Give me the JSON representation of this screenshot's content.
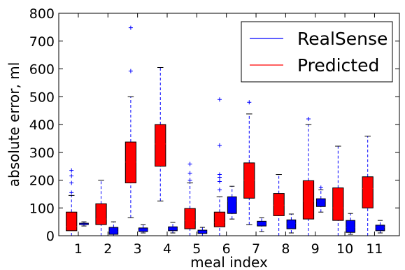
{
  "chart_data": {
    "type": "box",
    "xlabel": "meal index",
    "ylabel": "absolute error, ml",
    "ylim": [
      0,
      800
    ],
    "yticks": [
      0,
      100,
      200,
      300,
      400,
      500,
      600,
      700,
      800
    ],
    "categories": [
      "1",
      "2",
      "3",
      "4",
      "5",
      "6",
      "7",
      "8",
      "9",
      "10",
      "11"
    ],
    "grid": false,
    "legend_position": "top-right",
    "series": [
      {
        "name": "Predicted",
        "color": "#ff0000",
        "boxes": [
          {
            "min": 0,
            "q1": 18,
            "median": 33,
            "q3": 85,
            "max": 145,
            "outliers": [
              155,
              190,
              215,
              235
            ]
          },
          {
            "min": 0,
            "q1": 40,
            "median": 60,
            "q3": 115,
            "max": 200,
            "outliers": []
          },
          {
            "min": 65,
            "q1": 190,
            "median": 265,
            "q3": 337,
            "max": 500,
            "outliers": [
              592,
              748
            ]
          },
          {
            "min": 125,
            "q1": 250,
            "median": 330,
            "q3": 400,
            "max": 605,
            "outliers": []
          },
          {
            "min": 0,
            "q1": 25,
            "median": 55,
            "q3": 98,
            "max": 190,
            "outliers": [
              200,
              225,
              258
            ]
          },
          {
            "min": 0,
            "q1": 32,
            "median": 48,
            "q3": 85,
            "max": 140,
            "outliers": [
              165,
              195,
              210,
              220,
              325,
              490
            ]
          },
          {
            "min": 40,
            "q1": 135,
            "median": 200,
            "q3": 262,
            "max": 438,
            "outliers": [
              480
            ]
          },
          {
            "min": 0,
            "q1": 72,
            "median": 110,
            "q3": 152,
            "max": 220,
            "outliers": []
          },
          {
            "min": 0,
            "q1": 60,
            "median": 125,
            "q3": 198,
            "max": 400,
            "outliers": [
              420
            ]
          },
          {
            "min": 0,
            "q1": 55,
            "median": 100,
            "q3": 172,
            "max": 322,
            "outliers": []
          },
          {
            "min": 0,
            "q1": 100,
            "median": 170,
            "q3": 212,
            "max": 358,
            "outliers": []
          }
        ]
      },
      {
        "name": "RealSense",
        "color": "#0000ff",
        "boxes": [
          {
            "min": 35,
            "q1": 40,
            "median": 42,
            "q3": 45,
            "max": 50,
            "outliers": []
          },
          {
            "min": 0,
            "q1": 5,
            "median": 15,
            "q3": 30,
            "max": 50,
            "outliers": []
          },
          {
            "min": 10,
            "q1": 15,
            "median": 20,
            "q3": 28,
            "max": 40,
            "outliers": []
          },
          {
            "min": 10,
            "q1": 18,
            "median": 25,
            "q3": 32,
            "max": 48,
            "outliers": []
          },
          {
            "min": 0,
            "q1": 8,
            "median": 14,
            "q3": 20,
            "max": 30,
            "outliers": []
          },
          {
            "min": 60,
            "q1": 80,
            "median": 125,
            "q3": 140,
            "max": 178,
            "outliers": []
          },
          {
            "min": 15,
            "q1": 35,
            "median": 45,
            "q3": 52,
            "max": 65,
            "outliers": []
          },
          {
            "min": 10,
            "q1": 25,
            "median": 45,
            "q3": 57,
            "max": 78,
            "outliers": []
          },
          {
            "min": 85,
            "q1": 105,
            "median": 125,
            "q3": 133,
            "max": 165,
            "outliers": [
              173
            ]
          },
          {
            "min": 5,
            "q1": 12,
            "median": 30,
            "q3": 55,
            "max": 80,
            "outliers": []
          },
          {
            "min": 10,
            "q1": 18,
            "median": 30,
            "q3": 38,
            "max": 55,
            "outliers": []
          }
        ]
      }
    ],
    "legend": [
      "RealSense",
      "Predicted"
    ]
  }
}
